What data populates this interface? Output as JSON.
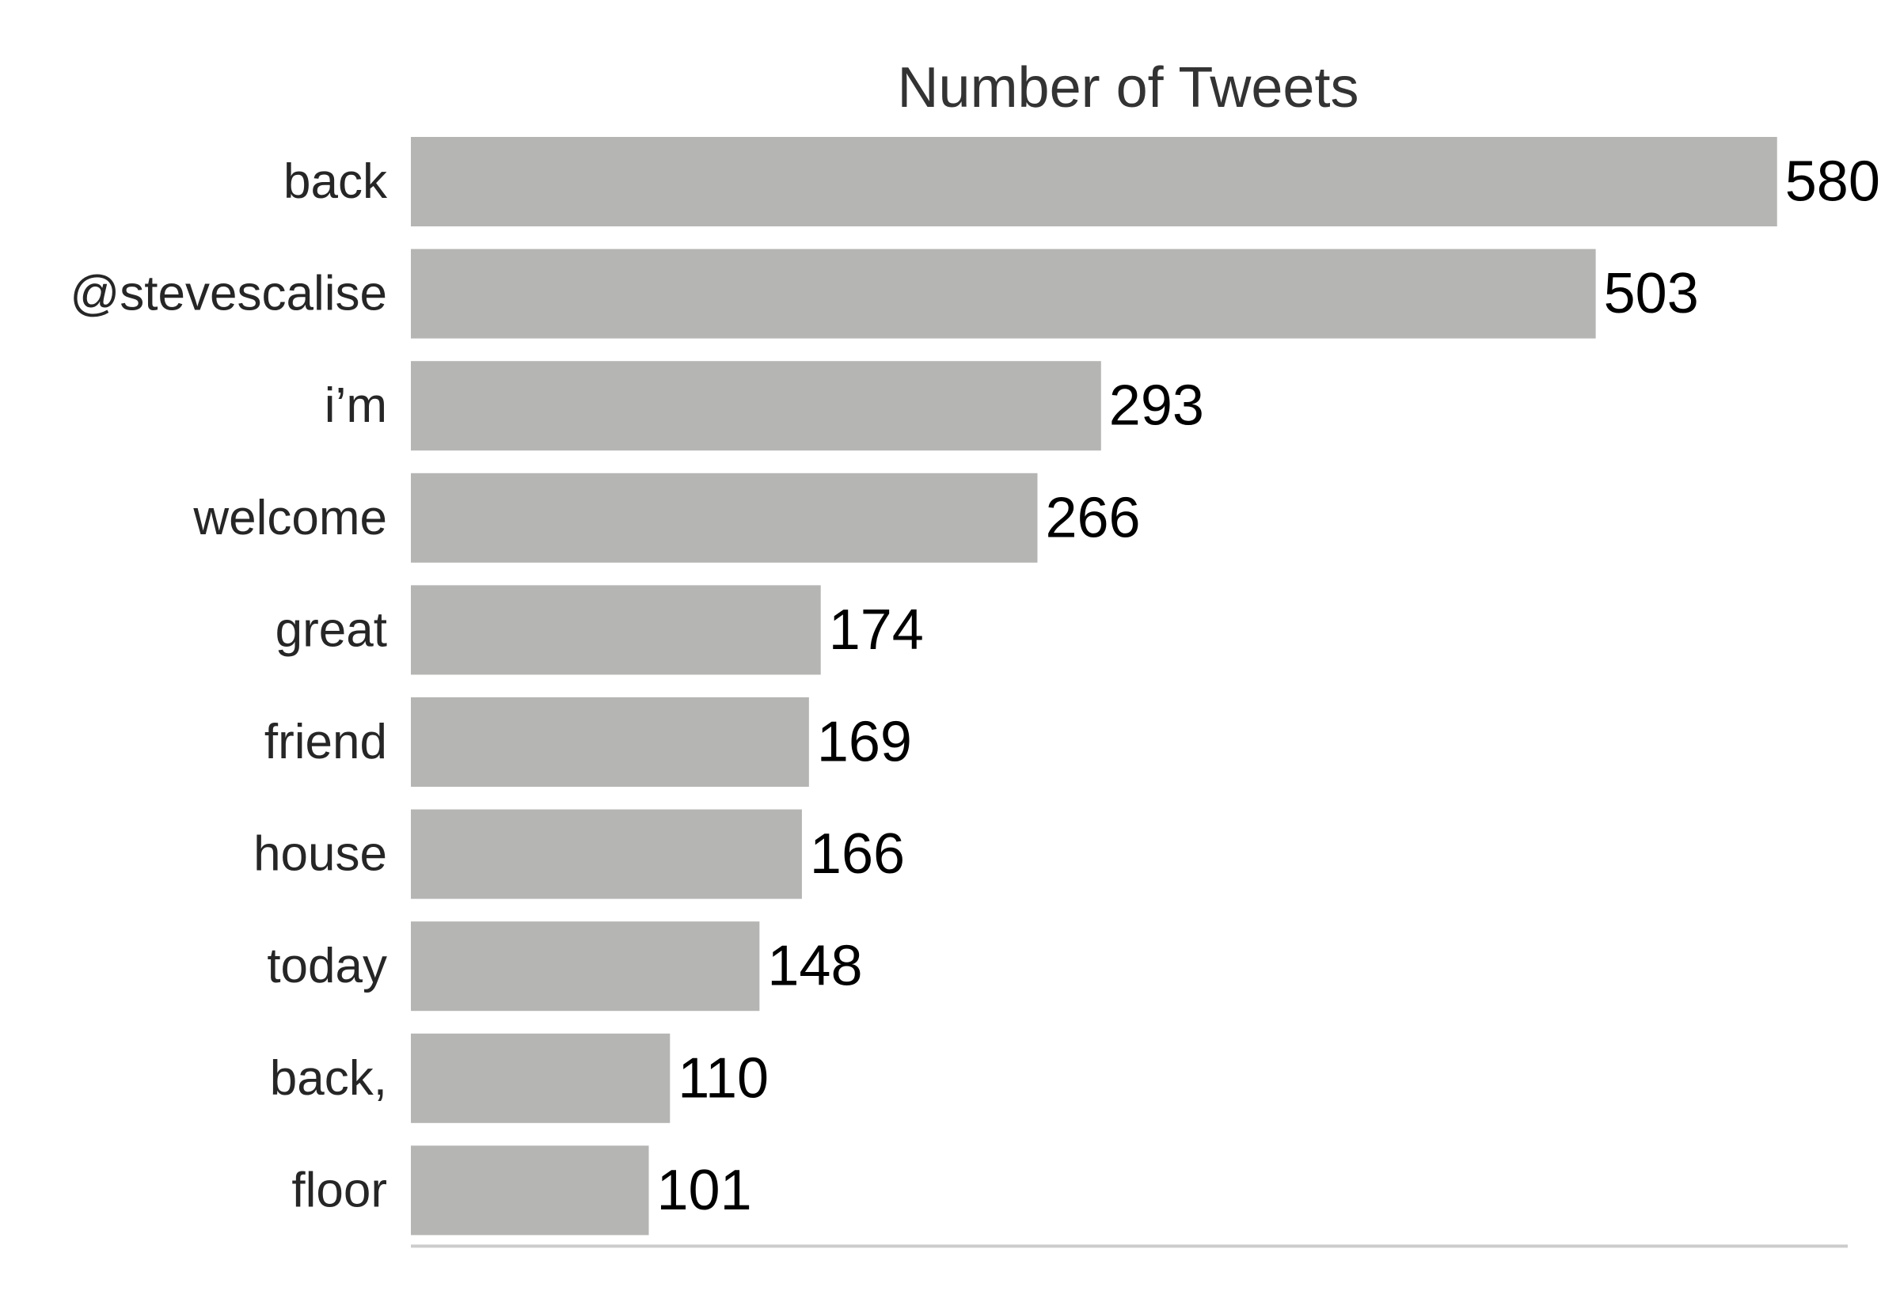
{
  "chart_data": {
    "type": "bar",
    "orientation": "horizontal",
    "title": "Number of Tweets",
    "xlabel": "",
    "ylabel": "",
    "categories": [
      "back",
      "@stevescalise",
      "i’m",
      "welcome",
      "great",
      "friend",
      "house",
      "today",
      "back,",
      "floor"
    ],
    "values": [
      580,
      503,
      293,
      266,
      174,
      169,
      166,
      148,
      110,
      101
    ],
    "xlim": [
      0,
      610
    ],
    "grid": false,
    "legend": "none",
    "show_data_labels": true,
    "colors": {
      "bar": "#b5b5b4",
      "axis": "#cccccc",
      "title": "#333333",
      "tick_label": "#262626",
      "data_label": "#000000"
    }
  }
}
